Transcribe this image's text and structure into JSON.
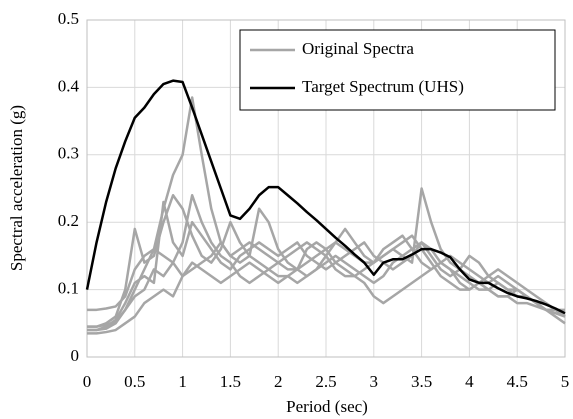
{
  "chart_data": {
    "type": "line",
    "x_label": "Period (sec)",
    "y_label": "Spectral acceleration (g)",
    "x": [
      0,
      0.1,
      0.2,
      0.3,
      0.4,
      0.5,
      0.6,
      0.7,
      0.8,
      0.9,
      1,
      1.1,
      1.2,
      1.3,
      1.4,
      1.5,
      1.6,
      1.7,
      1.8,
      1.9,
      2,
      2.1,
      2.2,
      2.3,
      2.4,
      2.5,
      2.6,
      2.7,
      2.8,
      2.9,
      3,
      3.1,
      3.2,
      3.3,
      3.4,
      3.5,
      3.6,
      3.7,
      3.8,
      3.9,
      4,
      4.1,
      4.2,
      4.3,
      4.4,
      4.5,
      4.6,
      4.7,
      4.8,
      4.9,
      5
    ],
    "series": [
      {
        "name": "Original Spectra",
        "color": "#a6a6a6",
        "values": [
          [
            0.07,
            0.07,
            0.072,
            0.075,
            0.09,
            0.13,
            0.15,
            0.16,
            0.22,
            0.27,
            0.3,
            0.385,
            0.3,
            0.22,
            0.17,
            0.15,
            0.16,
            0.17,
            0.16,
            0.15,
            0.14,
            0.13,
            0.13,
            0.14,
            0.15,
            0.16,
            0.17,
            0.16,
            0.15,
            0.14,
            0.14,
            0.15,
            0.16,
            0.15,
            0.14,
            0.25,
            0.2,
            0.16,
            0.14,
            0.13,
            0.12,
            0.11,
            0.1,
            0.11,
            0.1,
            0.09,
            0.09,
            0.08,
            0.08,
            0.07,
            0.07
          ],
          [
            0.045,
            0.045,
            0.05,
            0.06,
            0.1,
            0.19,
            0.14,
            0.15,
            0.2,
            0.24,
            0.22,
            0.18,
            0.15,
            0.14,
            0.16,
            0.2,
            0.17,
            0.15,
            0.14,
            0.13,
            0.12,
            0.12,
            0.11,
            0.12,
            0.13,
            0.14,
            0.15,
            0.14,
            0.13,
            0.12,
            0.11,
            0.12,
            0.14,
            0.15,
            0.16,
            0.17,
            0.15,
            0.13,
            0.12,
            0.13,
            0.15,
            0.14,
            0.12,
            0.11,
            0.1,
            0.1,
            0.09,
            0.08,
            0.07,
            0.07,
            0.06
          ],
          [
            0.04,
            0.04,
            0.042,
            0.05,
            0.07,
            0.1,
            0.13,
            0.16,
            0.15,
            0.14,
            0.12,
            0.13,
            0.14,
            0.15,
            0.17,
            0.15,
            0.14,
            0.15,
            0.22,
            0.2,
            0.16,
            0.14,
            0.13,
            0.12,
            0.13,
            0.15,
            0.17,
            0.19,
            0.17,
            0.15,
            0.14,
            0.16,
            0.17,
            0.18,
            0.16,
            0.14,
            0.13,
            0.14,
            0.13,
            0.12,
            0.11,
            0.1,
            0.1,
            0.09,
            0.09,
            0.08,
            0.08,
            0.075,
            0.07,
            0.065,
            0.06
          ],
          [
            0.035,
            0.035,
            0.037,
            0.04,
            0.05,
            0.06,
            0.08,
            0.09,
            0.1,
            0.09,
            0.12,
            0.14,
            0.13,
            0.12,
            0.11,
            0.12,
            0.13,
            0.14,
            0.13,
            0.12,
            0.11,
            0.12,
            0.13,
            0.16,
            0.17,
            0.16,
            0.14,
            0.13,
            0.12,
            0.11,
            0.09,
            0.08,
            0.09,
            0.1,
            0.11,
            0.12,
            0.13,
            0.14,
            0.15,
            0.14,
            0.13,
            0.12,
            0.11,
            0.12,
            0.11,
            0.1,
            0.09,
            0.08,
            0.07,
            0.06,
            0.05
          ],
          [
            0.04,
            0.04,
            0.045,
            0.055,
            0.08,
            0.11,
            0.12,
            0.11,
            0.23,
            0.17,
            0.15,
            0.2,
            0.18,
            0.16,
            0.14,
            0.13,
            0.15,
            0.16,
            0.17,
            0.16,
            0.15,
            0.16,
            0.17,
            0.15,
            0.14,
            0.13,
            0.14,
            0.15,
            0.16,
            0.17,
            0.15,
            0.14,
            0.13,
            0.14,
            0.15,
            0.17,
            0.16,
            0.14,
            0.13,
            0.11,
            0.1,
            0.11,
            0.12,
            0.13,
            0.12,
            0.11,
            0.1,
            0.09,
            0.08,
            0.07,
            0.065
          ],
          [
            0.045,
            0.045,
            0.048,
            0.052,
            0.07,
            0.09,
            0.1,
            0.13,
            0.12,
            0.14,
            0.17,
            0.24,
            0.2,
            0.17,
            0.15,
            0.14,
            0.12,
            0.11,
            0.12,
            0.13,
            0.14,
            0.15,
            0.16,
            0.17,
            0.16,
            0.15,
            0.13,
            0.12,
            0.12,
            0.13,
            0.14,
            0.15,
            0.16,
            0.17,
            0.18,
            0.16,
            0.14,
            0.12,
            0.11,
            0.1,
            0.1,
            0.11,
            0.1,
            0.09,
            0.09,
            0.1,
            0.09,
            0.08,
            0.07,
            0.07,
            0.06
          ]
        ]
      },
      {
        "name": "Target Spectrum (UHS)",
        "color": "#000000",
        "values": [
          0.1,
          0.17,
          0.23,
          0.28,
          0.32,
          0.355,
          0.37,
          0.39,
          0.405,
          0.41,
          0.408,
          0.37,
          0.33,
          0.29,
          0.25,
          0.21,
          0.205,
          0.22,
          0.24,
          0.252,
          0.252,
          0.24,
          0.228,
          0.215,
          0.203,
          0.19,
          0.177,
          0.165,
          0.152,
          0.14,
          0.122,
          0.14,
          0.145,
          0.145,
          0.152,
          0.16,
          0.16,
          0.155,
          0.148,
          0.13,
          0.115,
          0.11,
          0.11,
          0.102,
          0.095,
          0.09,
          0.087,
          0.083,
          0.078,
          0.072,
          0.065
        ]
      }
    ],
    "xlim": [
      0,
      5
    ],
    "xticks": [
      0,
      0.5,
      1,
      1.5,
      2,
      2.5,
      3,
      3.5,
      4,
      4.5,
      5
    ],
    "ylim": [
      0,
      0.5
    ],
    "yticks": [
      0,
      0.1,
      0.2,
      0.3,
      0.4,
      0.5
    ],
    "grid": true,
    "legend": "upper right"
  }
}
